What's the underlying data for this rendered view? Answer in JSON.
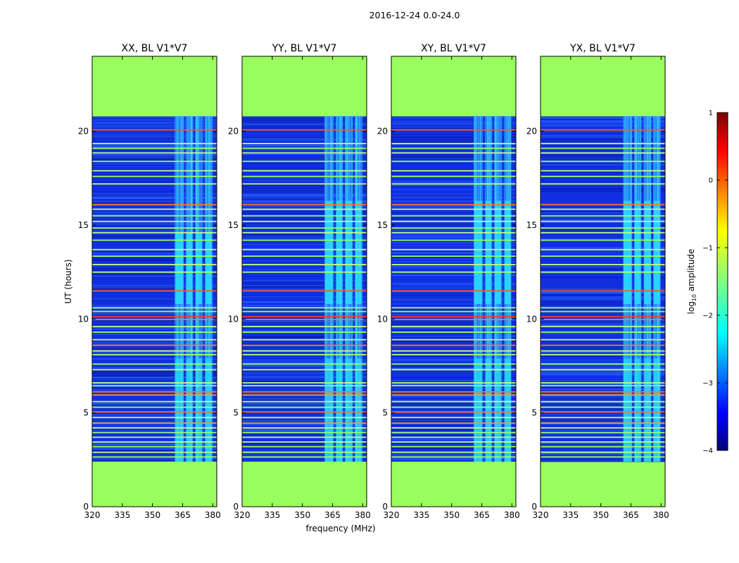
{
  "chart_data": {
    "type": "heatmap",
    "suptitle": "2016-12-24 0.0-24.0",
    "xlabel": "frequency (MHz)",
    "ylabel": "UT (hours)",
    "xlim": [
      320,
      382
    ],
    "ylim": [
      0,
      24
    ],
    "xticks": [
      320,
      335,
      350,
      365,
      380
    ],
    "yticks": [
      0,
      5,
      10,
      15,
      20
    ],
    "data_coverage_hours": [
      2.4,
      20.8
    ],
    "active_band_mhz": [
      361,
      380
    ],
    "panels": [
      {
        "title": "XX, BL V1*V7",
        "bands_mhz": [
          [
            361,
            365.5
          ],
          [
            366.5,
            370
          ],
          [
            371.2,
            375
          ],
          [
            376,
            379.8
          ]
        ],
        "rfi_start_hour": 14.6
      },
      {
        "title": "YY, BL V1*V7",
        "bands_mhz": [
          [
            361,
            365.5
          ],
          [
            366.5,
            370
          ],
          [
            371.2,
            375
          ],
          [
            376,
            379.8
          ]
        ],
        "rfi_start_hour": 16.3
      },
      {
        "title": "XY, BL V1*V7",
        "bands_mhz": [
          [
            361,
            365.5
          ],
          [
            366.5,
            370
          ],
          [
            371.2,
            375
          ],
          [
            376,
            379.8
          ]
        ],
        "rfi_start_hour": 16.3
      },
      {
        "title": "YX, BL V1*V7",
        "bands_mhz": [
          [
            361,
            365.5
          ],
          [
            366.5,
            370
          ],
          [
            371.2,
            375
          ],
          [
            376,
            379.8
          ]
        ],
        "rfi_start_hour": 16.3
      }
    ],
    "horizontal_lines_hours": [
      {
        "t": 20.08,
        "c": "#ff5a1e"
      },
      {
        "t": 19.35,
        "c": "#c8ff7a"
      },
      {
        "t": 19.1,
        "c": "#9cff5e"
      },
      {
        "t": 18.85,
        "c": "#c8ff7a"
      },
      {
        "t": 18.4,
        "c": "#9cff5e"
      },
      {
        "t": 17.9,
        "c": "#c8ff7a"
      },
      {
        "t": 17.6,
        "c": "#9cff5e"
      },
      {
        "t": 17.2,
        "c": "#c8ff7a"
      },
      {
        "t": 16.1,
        "c": "#ff7a1e"
      },
      {
        "t": 15.85,
        "c": "#c8ff7a"
      },
      {
        "t": 15.5,
        "c": "#9cff5e"
      },
      {
        "t": 15.2,
        "c": "#c8ff7a"
      },
      {
        "t": 14.85,
        "c": "#9cff5e"
      },
      {
        "t": 14.6,
        "c": "#c8ff7a"
      },
      {
        "t": 14.2,
        "c": "#9cff5e"
      },
      {
        "t": 13.7,
        "c": "#c8ff7a"
      },
      {
        "t": 13.35,
        "c": "#9cff5e"
      },
      {
        "t": 12.9,
        "c": "#c8ff7a"
      },
      {
        "t": 12.5,
        "c": "#b8ff6a"
      },
      {
        "t": 11.5,
        "c": "#ff5a1e"
      },
      {
        "t": 10.6,
        "c": "#b8ff6a"
      },
      {
        "t": 10.4,
        "c": "#9cff5e"
      },
      {
        "t": 10.12,
        "c": "#ff3c1e"
      },
      {
        "t": 9.98,
        "c": "#ff7a1e"
      },
      {
        "t": 9.6,
        "c": "#c8ff7a"
      },
      {
        "t": 9.3,
        "c": "#9cff5e"
      },
      {
        "t": 8.9,
        "c": "#c8ff7a"
      },
      {
        "t": 8.6,
        "c": "#ff7a1e"
      },
      {
        "t": 8.3,
        "c": "#c8ff7a"
      },
      {
        "t": 8.1,
        "c": "#b8ff6a"
      },
      {
        "t": 7.6,
        "c": "#9cff5e"
      },
      {
        "t": 7.3,
        "c": "#c8ff7a"
      },
      {
        "t": 6.6,
        "c": "#c8ff7a"
      },
      {
        "t": 6.45,
        "c": "#9cff5e"
      },
      {
        "t": 6.12,
        "c": "#ff7a1e"
      },
      {
        "t": 5.95,
        "c": "#ff9a1e"
      },
      {
        "t": 5.6,
        "c": "#c8ff7a"
      },
      {
        "t": 5.3,
        "c": "#9cff5e"
      },
      {
        "t": 5.05,
        "c": "#ff7a1e"
      },
      {
        "t": 4.75,
        "c": "#c8ff7a"
      },
      {
        "t": 4.45,
        "c": "#ff9a1e"
      },
      {
        "t": 4.2,
        "c": "#c8ff7a"
      },
      {
        "t": 3.95,
        "c": "#9cff5e"
      },
      {
        "t": 3.7,
        "c": "#b8ff6a"
      },
      {
        "t": 3.45,
        "c": "#c8ff7a"
      },
      {
        "t": 3.2,
        "c": "#9cff5e"
      },
      {
        "t": 2.9,
        "c": "#c8ff7a"
      },
      {
        "t": 2.65,
        "c": "#9cff5e"
      }
    ],
    "colorbar": {
      "label": "log₁₀ amplitude",
      "label_base": "log",
      "label_sub": "10",
      "label_rest": " amplitude",
      "range": [
        -4,
        1
      ],
      "ticks": [
        1,
        0,
        -1,
        -2,
        -3,
        -4
      ],
      "tick_labels": [
        "1",
        "0",
        "−1",
        "−2",
        "−3",
        "−4"
      ],
      "colormap": "jet"
    },
    "colors": {
      "masked": "#99ff5e",
      "noise_low": "#1030e0",
      "noise_high": "#2a6cff",
      "band": "#2ad9ff"
    }
  }
}
